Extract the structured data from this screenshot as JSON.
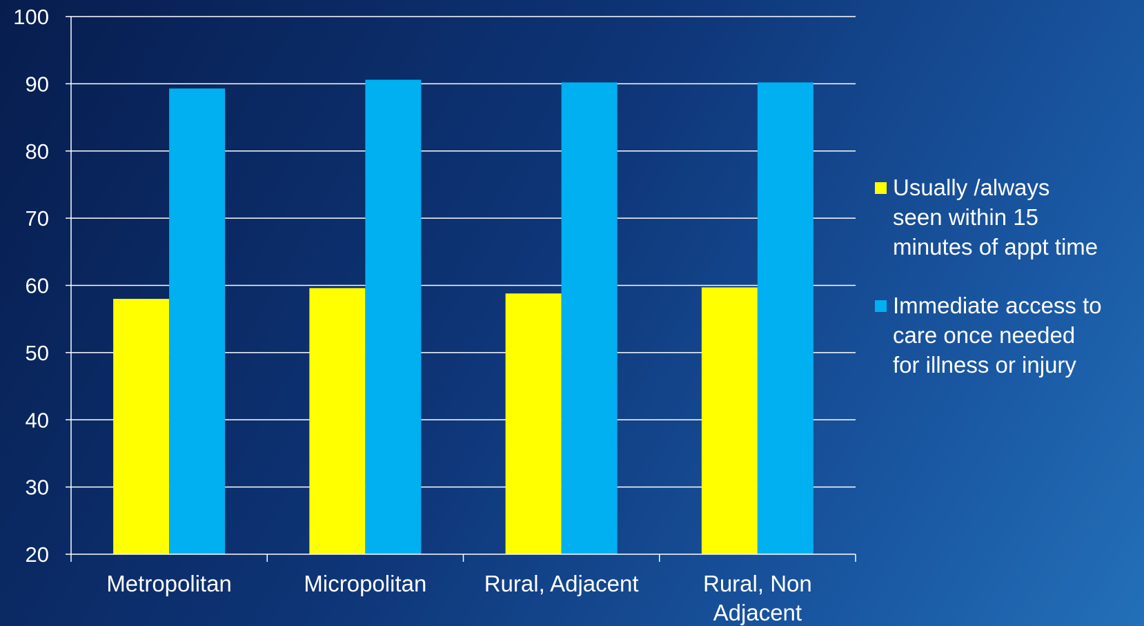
{
  "chart_data": {
    "type": "bar",
    "categories": [
      [
        "Metropolitan"
      ],
      [
        "Micropolitan"
      ],
      [
        "Rural, Adjacent"
      ],
      [
        "Rural, Non",
        "Adjacent"
      ]
    ],
    "series": [
      {
        "name": "Usually /always seen within 15 minutes of appt time",
        "legend_lines": [
          "Usually /always",
          "seen within 15",
          "minutes of appt time"
        ],
        "color": "#ffff00",
        "values": [
          58.0,
          59.6,
          58.8,
          59.7
        ]
      },
      {
        "name": "Immediate access to care once needed for illness or injury",
        "legend_lines": [
          "Immediate access to",
          "care once needed",
          "for illness or injury"
        ],
        "color": "#00b0f0",
        "values": [
          89.3,
          90.6,
          90.2,
          90.2
        ]
      }
    ],
    "ylim": [
      20,
      100
    ],
    "yticks": [
      20,
      30,
      40,
      50,
      60,
      70,
      80,
      90,
      100
    ],
    "grid": true,
    "legend_position": "right"
  }
}
